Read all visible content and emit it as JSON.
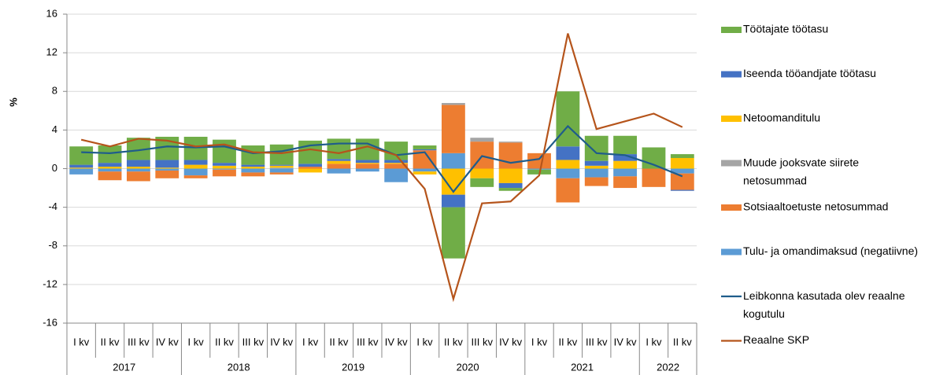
{
  "chart_data": {
    "type": "stacked-bar-line",
    "y_label": "%",
    "categories": [
      "I kv",
      "II kv",
      "III kv",
      "IV kv",
      "I kv",
      "II kv",
      "III kv",
      "IV kv",
      "I kv",
      "II kv",
      "III kv",
      "IV kv",
      "I kv",
      "II kv",
      "III kv",
      "IV kv",
      "I kv",
      "II kv",
      "III kv",
      "IV kv",
      "I kv",
      "II kv"
    ],
    "groups": [
      "2017",
      "2018",
      "2019",
      "2020",
      "2021",
      "2022"
    ],
    "ylim": [
      -16,
      16
    ],
    "yticks": [
      -16,
      -12,
      -8,
      -4,
      0,
      4,
      8,
      12,
      16
    ],
    "grid": true,
    "legend": "right",
    "series": [
      {
        "name": "Töötajate töötasu",
        "color": "#70ad47",
        "kind": "bar",
        "values": [
          1.9,
          1.8,
          2.3,
          2.4,
          2.4,
          2.4,
          2.0,
          2.1,
          2.4,
          2.1,
          2.2,
          1.9,
          0.4,
          -5.3,
          -0.9,
          -0.3,
          -0.5,
          5.7,
          2.6,
          1.9,
          2.2,
          0.4
        ]
      },
      {
        "name": "Iseenda tööandjate töötasu",
        "color": "#4472c4",
        "kind": "bar",
        "values": [
          0.3,
          0.4,
          0.7,
          0.8,
          0.5,
          0.3,
          0.2,
          0.1,
          0.3,
          0.2,
          0.3,
          0.3,
          0.1,
          -1.3,
          0,
          -0.5,
          0,
          1.4,
          0.5,
          0.7,
          0,
          -0.1
        ]
      },
      {
        "name": "Netoomanditulu",
        "color": "#ffc000",
        "kind": "bar",
        "values": [
          0.1,
          0.2,
          0.2,
          0.1,
          0.4,
          0.3,
          0.2,
          0.2,
          -0.4,
          0.3,
          0.1,
          0.1,
          -0.3,
          -2.7,
          -1.0,
          -1.5,
          0,
          0.9,
          0.3,
          0.8,
          0,
          1.1
        ]
      },
      {
        "name": "Muude jooksvate siirete netosummad",
        "color": "#a5a5a5",
        "kind": "bar",
        "values": [
          0,
          0,
          0,
          0,
          0,
          0,
          0,
          0.1,
          0,
          0,
          0,
          0,
          0,
          0.2,
          0.4,
          0.1,
          0,
          0,
          0,
          0,
          0,
          0
        ]
      },
      {
        "name": "Sotsiaaltoetuste netosummad",
        "color": "#ed7d31",
        "kind": "bar",
        "values": [
          0,
          -0.9,
          -1.0,
          -0.8,
          -0.3,
          -0.7,
          -0.4,
          -0.2,
          0.2,
          0.5,
          0.5,
          0.5,
          1.9,
          5.0,
          2.8,
          2.7,
          1.6,
          -2.5,
          -0.9,
          -1.2,
          -1.9,
          -1.7
        ]
      },
      {
        "name": "Tulu- ja omandimaksud (negatiivne)",
        "color": "#5b9bd5",
        "kind": "bar",
        "values": [
          -0.6,
          -0.3,
          -0.3,
          -0.2,
          -0.7,
          -0.1,
          -0.4,
          -0.4,
          0,
          -0.5,
          -0.3,
          -1.4,
          -0.3,
          1.6,
          0,
          0,
          -0.1,
          -1.0,
          -0.9,
          -0.8,
          0,
          -0.5
        ]
      },
      {
        "name": "Leibkonna kasutada olev reaalne kogutulu",
        "color": "#1f5c8b",
        "kind": "line",
        "values": [
          1.7,
          1.6,
          1.9,
          2.3,
          2.2,
          2.3,
          1.6,
          1.8,
          2.4,
          2.6,
          2.6,
          1.4,
          1.7,
          -2.4,
          1.3,
          0.6,
          1.0,
          4.4,
          1.6,
          1.4,
          0.4,
          -0.8
        ]
      },
      {
        "name": "Reaalne SKP",
        "color": "#b5541b",
        "kind": "line",
        "values": [
          3.0,
          2.3,
          3.1,
          2.9,
          2.3,
          2.5,
          1.7,
          1.6,
          2.0,
          1.6,
          2.3,
          1.4,
          -2.1,
          -13.5,
          -3.6,
          -3.4,
          -0.7,
          14.0,
          4.1,
          4.9,
          5.7,
          4.3
        ]
      }
    ]
  }
}
